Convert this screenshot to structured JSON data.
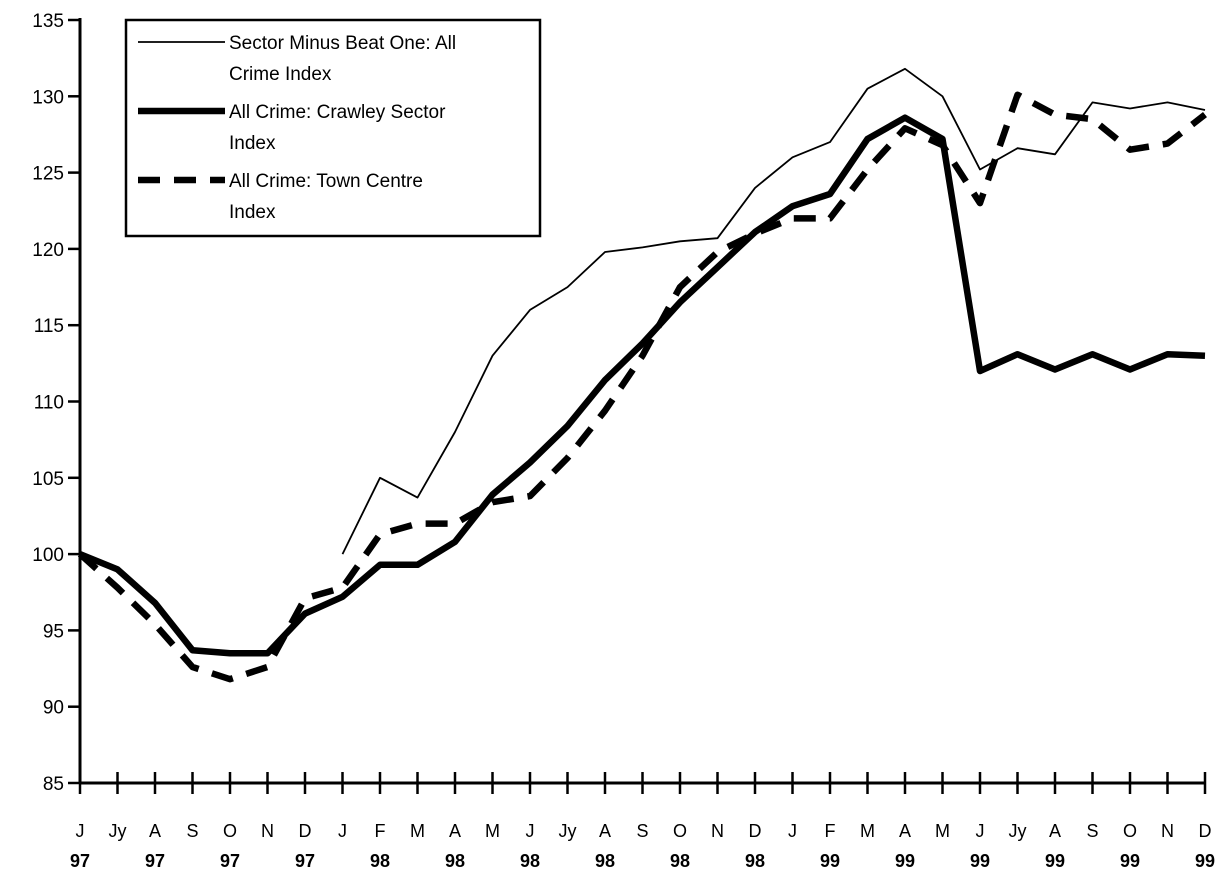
{
  "chart_data": {
    "type": "line",
    "title": "",
    "xlabel": "",
    "ylabel": "",
    "ylim": [
      85,
      135
    ],
    "yticks": [
      85,
      90,
      95,
      100,
      105,
      110,
      115,
      120,
      125,
      130,
      135
    ],
    "grid": false,
    "legend_position": "top-left",
    "x_months": [
      "J",
      "Jy",
      "A",
      "S",
      "O",
      "N",
      "D",
      "J",
      "F",
      "M",
      "A",
      "M",
      "J",
      "Jy",
      "A",
      "S",
      "O",
      "N",
      "D",
      "J",
      "F",
      "M",
      "A",
      "M",
      "J",
      "Jy",
      "A",
      "S",
      "O",
      "N",
      "D"
    ],
    "x_years": [
      "97",
      "",
      "97",
      "",
      "97",
      "",
      "97",
      "",
      "98",
      "",
      "98",
      "",
      "98",
      "",
      "98",
      "",
      "98",
      "",
      "98",
      "",
      "99",
      "",
      "99",
      "",
      "99",
      "",
      "99",
      "",
      "99",
      "",
      "99"
    ],
    "series": [
      {
        "name": "Sector Minus Beat One: All Crime Index",
        "style": "thin",
        "color": "#000000",
        "values": [
          null,
          null,
          null,
          null,
          null,
          null,
          null,
          100.0,
          105.0,
          103.7,
          108.0,
          113.0,
          116.0,
          117.5,
          119.8,
          120.1,
          120.5,
          120.7,
          124.0,
          126.0,
          127.0,
          130.5,
          131.8,
          130.0,
          125.2,
          126.6,
          126.2,
          129.6,
          129.2,
          129.6,
          129.1
        ]
      },
      {
        "name": "All Crime: Crawley Sector Index",
        "style": "thick",
        "color": "#000000",
        "values": [
          100.0,
          99.0,
          96.8,
          93.7,
          93.5,
          93.5,
          96.1,
          97.2,
          99.3,
          99.3,
          100.8,
          103.9,
          106.0,
          108.4,
          111.4,
          113.8,
          116.5,
          118.8,
          121.1,
          122.8,
          123.6,
          127.2,
          128.6,
          127.2,
          112.0,
          113.1,
          112.1,
          113.1,
          112.1,
          113.1,
          113.0
        ]
      },
      {
        "name": "All Crime: Town Centre Index",
        "style": "dashed",
        "color": "#000000",
        "values": [
          100.0,
          97.8,
          95.4,
          92.6,
          91.8,
          92.6,
          97.1,
          97.8,
          101.3,
          102.0,
          102.0,
          103.4,
          103.8,
          106.3,
          109.4,
          113.0,
          117.5,
          119.8,
          121.0,
          122.0,
          122.0,
          125.2,
          127.9,
          126.8,
          123.0,
          130.1,
          128.8,
          128.5,
          126.5,
          126.9,
          128.8
        ]
      }
    ]
  }
}
